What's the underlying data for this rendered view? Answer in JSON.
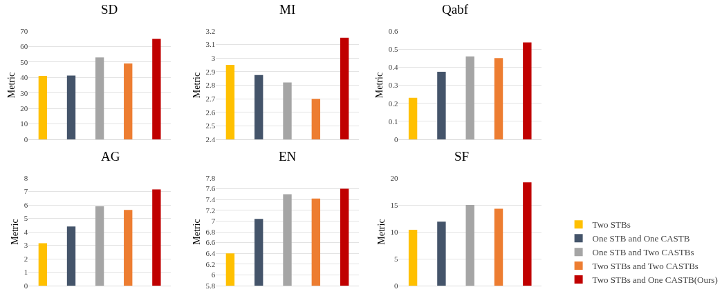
{
  "chart_data": [
    {
      "type": "bar",
      "title": "SD",
      "ylabel": "Metric",
      "categories": [
        null
      ],
      "ylim": [
        0,
        70
      ],
      "yticks": [
        0,
        10,
        20,
        30,
        40,
        50,
        60,
        70
      ],
      "grid": "y",
      "tick_labels": "y",
      "series": [
        {
          "color": "#ffc000",
          "values": [
            41
          ]
        },
        {
          "color": "#44546a",
          "values": [
            41.2
          ]
        },
        {
          "color": "#a5a5a5",
          "values": [
            53
          ]
        },
        {
          "color": "#ed7d31",
          "values": [
            49
          ]
        },
        {
          "color": "#c00000",
          "values": [
            65
          ]
        }
      ]
    },
    {
      "type": "bar",
      "title": "MI",
      "ylabel": "Metric",
      "categories": [
        null
      ],
      "ylim": [
        2.4,
        3.2
      ],
      "yticks": [
        2.4,
        2.5,
        2.6,
        2.7,
        2.8,
        2.9,
        {
          "value": 3,
          "label": "3"
        },
        3.1,
        3.2
      ],
      "grid": "y",
      "tick_labels": "y",
      "series": [
        {
          "color": "#ffc000",
          "values": [
            2.95
          ]
        },
        {
          "color": "#44546a",
          "values": [
            2.875
          ]
        },
        {
          "color": "#a5a5a5",
          "values": [
            2.82
          ]
        },
        {
          "color": "#ed7d31",
          "values": [
            2.7
          ]
        },
        {
          "color": "#c00000",
          "values": [
            3.15
          ]
        }
      ]
    },
    {
      "type": "bar",
      "title": "Qabf",
      "ylabel": "Metric",
      "categories": [
        null
      ],
      "ylim": [
        0,
        0.6
      ],
      "yticks": [
        0,
        0.1,
        0.2,
        0.3,
        0.4,
        0.5,
        0.6
      ],
      "grid": "y",
      "tick_labels": "y",
      "series": [
        {
          "color": "#ffc000",
          "values": [
            0.23
          ]
        },
        {
          "color": "#44546a",
          "values": [
            0.375
          ]
        },
        {
          "color": "#a5a5a5",
          "values": [
            0.46
          ]
        },
        {
          "color": "#ed7d31",
          "values": [
            0.45
          ]
        },
        {
          "color": "#c00000",
          "values": [
            0.537
          ]
        }
      ]
    },
    {
      "type": "bar",
      "title": "AG",
      "ylabel": "Metric",
      "categories": [
        null
      ],
      "ylim": [
        0,
        8
      ],
      "yticks": [
        0,
        1,
        2,
        3,
        4,
        5,
        6,
        7,
        8
      ],
      "grid": "y",
      "tick_labels": "y",
      "series": [
        {
          "color": "#ffc000",
          "values": [
            3.15
          ]
        },
        {
          "color": "#44546a",
          "values": [
            4.4
          ]
        },
        {
          "color": "#a5a5a5",
          "values": [
            5.9
          ]
        },
        {
          "color": "#ed7d31",
          "values": [
            5.63
          ]
        },
        {
          "color": "#c00000",
          "values": [
            7.15
          ]
        }
      ]
    },
    {
      "type": "bar",
      "title": "EN",
      "ylabel": "Metric",
      "categories": [
        null
      ],
      "ylim": [
        5.8,
        7.8
      ],
      "yticks": [
        5.8,
        {
          "value": 6,
          "label": "6"
        },
        6.2,
        6.4,
        6.6,
        6.8,
        {
          "value": 7,
          "label": "7"
        },
        7.2,
        7.4,
        7.6,
        7.8
      ],
      "grid": "y",
      "tick_labels": "y",
      "series": [
        {
          "color": "#ffc000",
          "values": [
            6.4
          ]
        },
        {
          "color": "#44546a",
          "values": [
            7.04
          ]
        },
        {
          "color": "#a5a5a5",
          "values": [
            7.5
          ]
        },
        {
          "color": "#ed7d31",
          "values": [
            7.42
          ]
        },
        {
          "color": "#c00000",
          "values": [
            7.6
          ]
        }
      ]
    },
    {
      "type": "bar",
      "title": "SF",
      "ylabel": "Metric",
      "categories": [
        null
      ],
      "ylim": [
        0,
        20
      ],
      "yticks": [
        0,
        5,
        10,
        15,
        20
      ],
      "grid": "y",
      "tick_labels": "y",
      "legend": "right",
      "series": [
        {
          "name": "Two STBs",
          "color": "#ffc000",
          "values": [
            10.4
          ]
        },
        {
          "name": "One STB and One CASTB",
          "color": "#44546a",
          "values": [
            11.9
          ]
        },
        {
          "name": "One STB and Two CASTBs",
          "color": "#a5a5a5",
          "values": [
            15.0
          ]
        },
        {
          "name": "Two STBs and Two CASTBs",
          "color": "#ed7d31",
          "values": [
            14.3
          ]
        },
        {
          "name": "Two STBs and One CASTB(Ours)",
          "color": "#c00000",
          "values": [
            19.2
          ]
        }
      ]
    }
  ]
}
